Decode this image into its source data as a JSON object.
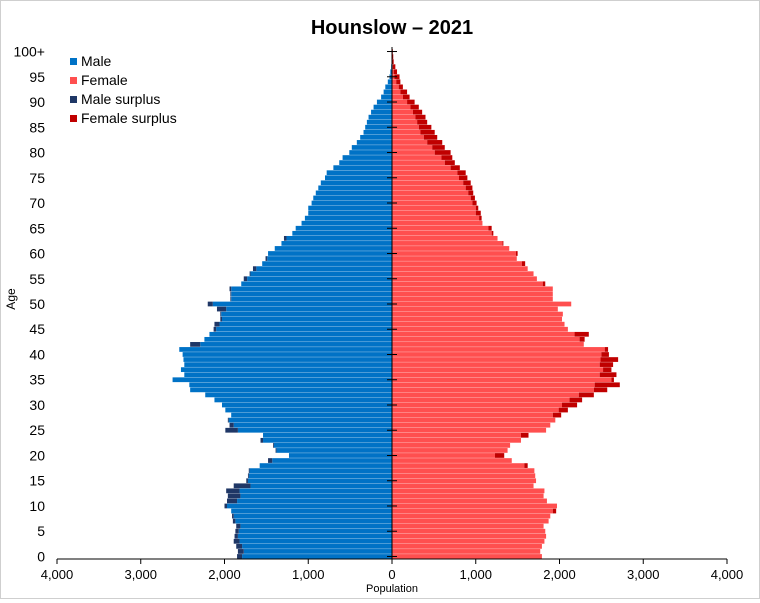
{
  "chart_data": {
    "type": "bar",
    "orientation": "horizontal-pyramid",
    "title": "Hounslow – 2021",
    "xlabel": "Population",
    "ylabel": "Age",
    "xlim": [
      -4000,
      4000
    ],
    "ylim": [
      0,
      100
    ],
    "x_ticks": [
      -4000,
      -3000,
      -2000,
      -1000,
      0,
      1000,
      2000,
      3000,
      4000
    ],
    "x_tick_labels": [
      "4,000",
      "3,000",
      "2,000",
      "1,000",
      "0",
      "1,000",
      "2,000",
      "3,000",
      "4,000"
    ],
    "y_ticks": [
      0,
      5,
      10,
      15,
      20,
      25,
      30,
      35,
      40,
      45,
      50,
      55,
      60,
      65,
      70,
      75,
      80,
      85,
      90,
      95,
      100
    ],
    "y_tick_labels": [
      "0",
      "5",
      "10",
      "15",
      "20",
      "25",
      "30",
      "35",
      "40",
      "45",
      "50",
      "55",
      "60",
      "65",
      "70",
      "75",
      "80",
      "85",
      "90",
      "95",
      "100+"
    ],
    "grid": false,
    "legend_position": "top-left",
    "legend": [
      {
        "name": "Male",
        "color": "#0072c6"
      },
      {
        "name": "Female",
        "color": "#ff4f4f"
      },
      {
        "name": "Male surplus",
        "color": "#1f3766"
      },
      {
        "name": "Female surplus",
        "color": "#c00000"
      }
    ],
    "ages": [
      0,
      1,
      2,
      3,
      4,
      5,
      6,
      7,
      8,
      9,
      10,
      11,
      12,
      13,
      14,
      15,
      16,
      17,
      18,
      19,
      20,
      21,
      22,
      23,
      24,
      25,
      26,
      27,
      28,
      29,
      30,
      31,
      32,
      33,
      34,
      35,
      36,
      37,
      38,
      39,
      40,
      41,
      42,
      43,
      44,
      45,
      46,
      47,
      48,
      49,
      50,
      51,
      52,
      53,
      54,
      55,
      56,
      57,
      58,
      59,
      60,
      61,
      62,
      63,
      64,
      65,
      66,
      67,
      68,
      69,
      70,
      71,
      72,
      73,
      74,
      75,
      76,
      77,
      78,
      79,
      80,
      81,
      82,
      83,
      84,
      85,
      86,
      87,
      88,
      89,
      90,
      91,
      92,
      93,
      94,
      95,
      96,
      97,
      98,
      99,
      100
    ],
    "series": [
      {
        "name": "Male",
        "values": [
          1850,
          1840,
          1860,
          1890,
          1880,
          1870,
          1860,
          1900,
          1910,
          1920,
          2000,
          1970,
          1960,
          1980,
          1890,
          1740,
          1720,
          1710,
          1580,
          1480,
          1230,
          1390,
          1420,
          1570,
          1540,
          1990,
          1940,
          1960,
          1920,
          1990,
          2030,
          2120,
          2230,
          2410,
          2420,
          2620,
          2480,
          2520,
          2480,
          2490,
          2500,
          2540,
          2410,
          2240,
          2180,
          2130,
          2120,
          2050,
          2050,
          2090,
          2200,
          1930,
          1930,
          1940,
          1800,
          1770,
          1700,
          1660,
          1550,
          1510,
          1480,
          1400,
          1320,
          1290,
          1190,
          1150,
          1080,
          1040,
          1000,
          1000,
          960,
          940,
          910,
          880,
          850,
          800,
          780,
          700,
          630,
          590,
          510,
          480,
          420,
          380,
          340,
          320,
          300,
          280,
          250,
          220,
          180,
          130,
          100,
          80,
          50,
          30,
          20,
          10,
          5,
          3,
          2
        ]
      },
      {
        "name": "Female",
        "values": [
          1790,
          1770,
          1790,
          1820,
          1840,
          1830,
          1810,
          1870,
          1890,
          1960,
          1970,
          1850,
          1810,
          1820,
          1690,
          1720,
          1710,
          1700,
          1620,
          1430,
          1340,
          1380,
          1410,
          1540,
          1630,
          1840,
          1890,
          1950,
          2020,
          2100,
          2210,
          2270,
          2410,
          2570,
          2720,
          2650,
          2680,
          2620,
          2640,
          2700,
          2590,
          2580,
          2290,
          2300,
          2350,
          2100,
          2060,
          2030,
          2040,
          1980,
          2140,
          1920,
          1920,
          1920,
          1830,
          1730,
          1690,
          1620,
          1590,
          1490,
          1500,
          1400,
          1330,
          1260,
          1210,
          1190,
          1080,
          1070,
          1060,
          1030,
          1010,
          990,
          970,
          960,
          940,
          900,
          880,
          810,
          750,
          720,
          700,
          630,
          600,
          540,
          510,
          470,
          420,
          400,
          360,
          320,
          270,
          210,
          180,
          130,
          100,
          90,
          60,
          40,
          20,
          15,
          10
        ]
      }
    ]
  }
}
